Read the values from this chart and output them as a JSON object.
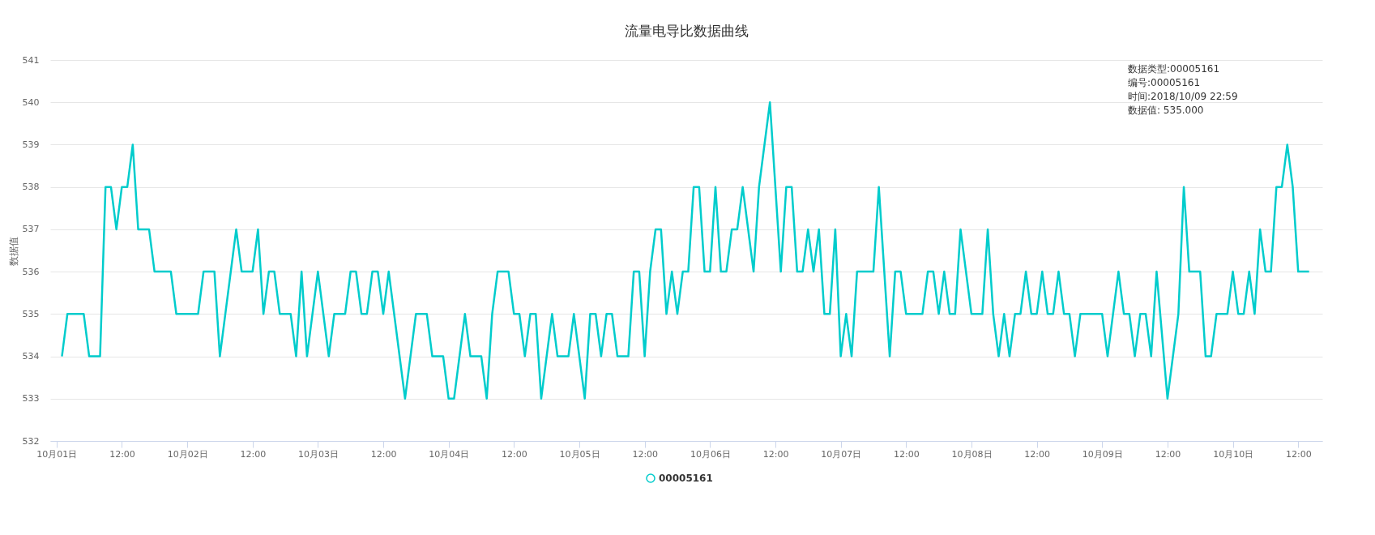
{
  "chart_data": {
    "type": "line",
    "title": "流量电导比数据曲线",
    "ylabel": "数据值",
    "x": [
      "2018-10-01T00:59",
      "2018-10-01T01:59",
      "2018-10-01T04:59",
      "2018-10-01T05:59",
      "2018-10-01T07:59",
      "2018-10-01T08:59",
      "2018-10-01T09:59",
      "2018-10-01T10:59",
      "2018-10-01T11:59",
      "2018-10-01T12:59",
      "2018-10-01T13:59",
      "2018-10-01T14:59",
      "2018-10-01T16:59",
      "2018-10-01T17:59",
      "2018-10-01T20:59",
      "2018-10-01T21:59",
      "2018-10-02T01:59",
      "2018-10-02T02:59",
      "2018-10-02T04:59",
      "2018-10-02T05:59",
      "2018-10-02T08:59",
      "2018-10-02T09:59",
      "2018-10-02T11:59",
      "2018-10-02T12:59",
      "2018-10-02T13:59",
      "2018-10-02T14:59",
      "2018-10-02T15:59",
      "2018-10-02T16:59",
      "2018-10-02T18:59",
      "2018-10-02T19:59",
      "2018-10-02T20:59",
      "2018-10-02T21:59",
      "2018-10-02T23:59",
      "2018-10-03T01:59",
      "2018-10-03T02:59",
      "2018-10-03T04:59",
      "2018-10-03T05:59",
      "2018-10-03T06:59",
      "2018-10-03T07:59",
      "2018-10-03T08:59",
      "2018-10-03T09:59",
      "2018-10-03T10:59",
      "2018-10-03T11:59",
      "2018-10-03T12:59",
      "2018-10-03T15:59",
      "2018-10-03T17:59",
      "2018-10-03T19:59",
      "2018-10-03T20:59",
      "2018-10-03T22:59",
      "2018-10-03T23:59",
      "2018-10-04T00:59",
      "2018-10-04T02:59",
      "2018-10-04T03:59",
      "2018-10-04T05:59",
      "2018-10-04T06:59",
      "2018-10-04T07:59",
      "2018-10-04T08:59",
      "2018-10-04T10:59",
      "2018-10-04T11:59",
      "2018-10-04T12:59",
      "2018-10-04T13:59",
      "2018-10-04T14:59",
      "2018-10-04T15:59",
      "2018-10-04T16:59",
      "2018-10-04T18:59",
      "2018-10-04T19:59",
      "2018-10-04T21:59",
      "2018-10-04T22:59",
      "2018-10-05T00:59",
      "2018-10-05T01:59",
      "2018-10-05T02:59",
      "2018-10-05T03:59",
      "2018-10-05T04:59",
      "2018-10-05T05:59",
      "2018-10-05T06:59",
      "2018-10-05T08:59",
      "2018-10-05T09:59",
      "2018-10-05T10:59",
      "2018-10-05T11:59",
      "2018-10-05T12:59",
      "2018-10-05T13:59",
      "2018-10-05T14:59",
      "2018-10-05T15:59",
      "2018-10-05T16:59",
      "2018-10-05T17:59",
      "2018-10-05T18:59",
      "2018-10-05T19:59",
      "2018-10-05T20:59",
      "2018-10-05T21:59",
      "2018-10-05T22:59",
      "2018-10-05T23:59",
      "2018-10-06T00:59",
      "2018-10-06T01:59",
      "2018-10-06T02:59",
      "2018-10-06T03:59",
      "2018-10-06T04:59",
      "2018-10-06T05:59",
      "2018-10-06T07:59",
      "2018-10-06T08:59",
      "2018-10-06T10:59",
      "2018-10-06T12:59",
      "2018-10-06T13:59",
      "2018-10-06T14:59",
      "2018-10-06T15:59",
      "2018-10-06T16:59",
      "2018-10-06T17:59",
      "2018-10-06T18:59",
      "2018-10-06T19:59",
      "2018-10-06T20:59",
      "2018-10-06T21:59",
      "2018-10-06T22:59",
      "2018-10-06T23:59",
      "2018-10-07T00:59",
      "2018-10-07T01:59",
      "2018-10-07T02:59",
      "2018-10-07T05:59",
      "2018-10-07T06:59",
      "2018-10-07T08:59",
      "2018-10-07T09:59",
      "2018-10-07T10:59",
      "2018-10-07T11:59",
      "2018-10-07T14:59",
      "2018-10-07T15:59",
      "2018-10-07T16:59",
      "2018-10-07T17:59",
      "2018-10-07T18:59",
      "2018-10-07T19:59",
      "2018-10-07T20:59",
      "2018-10-07T21:59",
      "2018-10-07T23:59",
      "2018-10-08T01:59",
      "2018-10-08T02:59",
      "2018-10-08T03:59",
      "2018-10-08T04:59",
      "2018-10-08T05:59",
      "2018-10-08T06:59",
      "2018-10-08T07:59",
      "2018-10-08T08:59",
      "2018-10-08T09:59",
      "2018-10-08T10:59",
      "2018-10-08T11:59",
      "2018-10-08T12:59",
      "2018-10-08T13:59",
      "2018-10-08T14:59",
      "2018-10-08T15:59",
      "2018-10-08T16:59",
      "2018-10-08T17:59",
      "2018-10-08T18:59",
      "2018-10-08T19:59",
      "2018-10-08T23:59",
      "2018-10-09T00:59",
      "2018-10-09T02:59",
      "2018-10-09T03:59",
      "2018-10-09T04:59",
      "2018-10-09T05:59",
      "2018-10-09T06:59",
      "2018-10-09T07:59",
      "2018-10-09T08:59",
      "2018-10-09T09:59",
      "2018-10-09T11:59",
      "2018-10-09T13:59",
      "2018-10-09T14:59",
      "2018-10-09T15:59",
      "2018-10-09T17:59",
      "2018-10-09T18:59",
      "2018-10-09T19:59",
      "2018-10-09T20:59",
      "2018-10-09T22:59",
      "2018-10-09T23:59",
      "2018-10-10T00:59",
      "2018-10-10T01:59",
      "2018-10-10T02:59",
      "2018-10-10T03:59",
      "2018-10-10T04:59",
      "2018-10-10T05:59",
      "2018-10-10T06:59",
      "2018-10-10T07:59",
      "2018-10-10T08:59",
      "2018-10-10T09:59",
      "2018-10-10T10:59",
      "2018-10-10T11:59",
      "2018-10-10T13:59"
    ],
    "series": [
      {
        "name": "00005161",
        "color": "#00cccc",
        "values": [
          534,
          535,
          535,
          534,
          534,
          538,
          538,
          537,
          538,
          538,
          539,
          537,
          537,
          536,
          536,
          535,
          535,
          536,
          536,
          534,
          537,
          536,
          536,
          537,
          535,
          536,
          536,
          535,
          535,
          534,
          536,
          534,
          536,
          534,
          535,
          535,
          536,
          536,
          535,
          535,
          536,
          536,
          535,
          536,
          533,
          535,
          535,
          534,
          534,
          533,
          533,
          535,
          534,
          534,
          533,
          535,
          536,
          536,
          535,
          535,
          534,
          535,
          535,
          533,
          535,
          534,
          534,
          535,
          533,
          535,
          535,
          534,
          535,
          535,
          534,
          534,
          536,
          536,
          534,
          536,
          537,
          537,
          535,
          536,
          535,
          536,
          536,
          538,
          538,
          536,
          536,
          538,
          536,
          536,
          537,
          537,
          538,
          536,
          538,
          540,
          536,
          538,
          538,
          536,
          536,
          537,
          536,
          537,
          535,
          535,
          537,
          534,
          535,
          534,
          536,
          536,
          538,
          534,
          536,
          536,
          535,
          535,
          536,
          536,
          535,
          536,
          535,
          535,
          537,
          535,
          535,
          537,
          535,
          534,
          535,
          534,
          535,
          535,
          536,
          535,
          535,
          536,
          535,
          535,
          536,
          535,
          535,
          534,
          535,
          535,
          534,
          536,
          535,
          535,
          534,
          535,
          535,
          534,
          536,
          533,
          535,
          538,
          536,
          536,
          534,
          534,
          535,
          535,
          536,
          535,
          535,
          536,
          535,
          537,
          536,
          536,
          538,
          538,
          539,
          538,
          536,
          536
        ]
      }
    ],
    "xlim": [
      "2018-09-30T22:50",
      "2018-10-10T16:25"
    ],
    "xticks": [
      {
        "value": "2018-10-01T00:00",
        "label": "10月01日"
      },
      {
        "value": "2018-10-01T12:00",
        "label": "12:00"
      },
      {
        "value": "2018-10-02T00:00",
        "label": "10月02日"
      },
      {
        "value": "2018-10-02T12:00",
        "label": "12:00"
      },
      {
        "value": "2018-10-03T00:00",
        "label": "10月03日"
      },
      {
        "value": "2018-10-03T12:00",
        "label": "12:00"
      },
      {
        "value": "2018-10-04T00:00",
        "label": "10月04日"
      },
      {
        "value": "2018-10-04T12:00",
        "label": "12:00"
      },
      {
        "value": "2018-10-05T00:00",
        "label": "10月05日"
      },
      {
        "value": "2018-10-05T12:00",
        "label": "12:00"
      },
      {
        "value": "2018-10-06T00:00",
        "label": "10月06日"
      },
      {
        "value": "2018-10-06T12:00",
        "label": "12:00"
      },
      {
        "value": "2018-10-07T00:00",
        "label": "10月07日"
      },
      {
        "value": "2018-10-07T12:00",
        "label": "12:00"
      },
      {
        "value": "2018-10-08T00:00",
        "label": "10月08日"
      },
      {
        "value": "2018-10-08T12:00",
        "label": "12:00"
      },
      {
        "value": "2018-10-09T00:00",
        "label": "10月09日"
      },
      {
        "value": "2018-10-09T12:00",
        "label": "12:00"
      },
      {
        "value": "2018-10-10T00:00",
        "label": "10月10日"
      },
      {
        "value": "2018-10-10T12:00",
        "label": "12:00"
      }
    ],
    "ylim": [
      532,
      541
    ],
    "yticks": [
      532,
      533,
      534,
      535,
      536,
      537,
      538,
      539,
      540,
      541
    ],
    "grid": "y",
    "legend": "bottom",
    "line_style": "solid",
    "annotations": [
      "数据类型:00005161\n编号:00005161\n时间:2018/10/09 22:59\n数据值: 535.000"
    ]
  }
}
